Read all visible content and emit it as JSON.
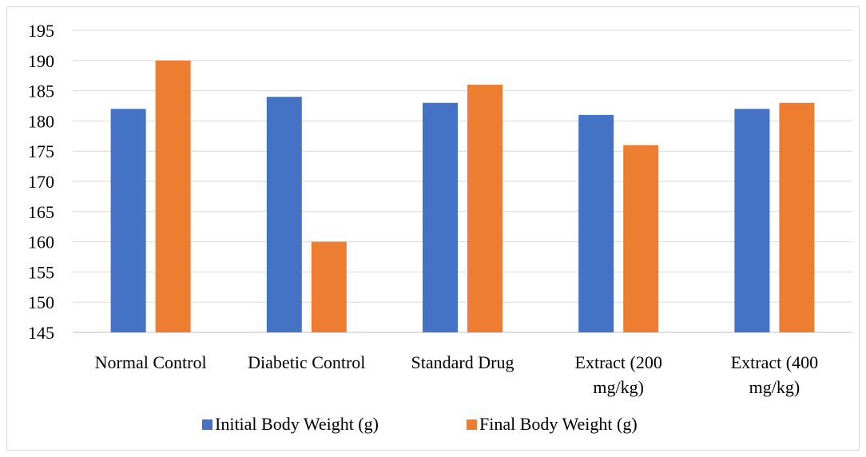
{
  "chart_data": {
    "type": "bar",
    "title": "",
    "xlabel": "",
    "ylabel": "",
    "categories": [
      [
        "Normal Control"
      ],
      [
        "Diabetic Control"
      ],
      [
        "Standard Drug"
      ],
      [
        "Extract (200",
        "mg/kg)"
      ],
      [
        "Extract (400",
        "mg/kg)"
      ]
    ],
    "series": [
      {
        "name": "Initial Body Weight (g)",
        "color": "#4472c4",
        "values": [
          182,
          184,
          183,
          181,
          182
        ]
      },
      {
        "name": "Final Body Weight (g)",
        "color": "#ed7d31",
        "values": [
          190,
          160,
          186,
          176,
          183
        ]
      }
    ],
    "ylim": [
      145,
      195
    ],
    "yticks": [
      145,
      150,
      155,
      160,
      165,
      170,
      175,
      180,
      185,
      190,
      195
    ],
    "grid": true,
    "legend_position": "bottom"
  }
}
